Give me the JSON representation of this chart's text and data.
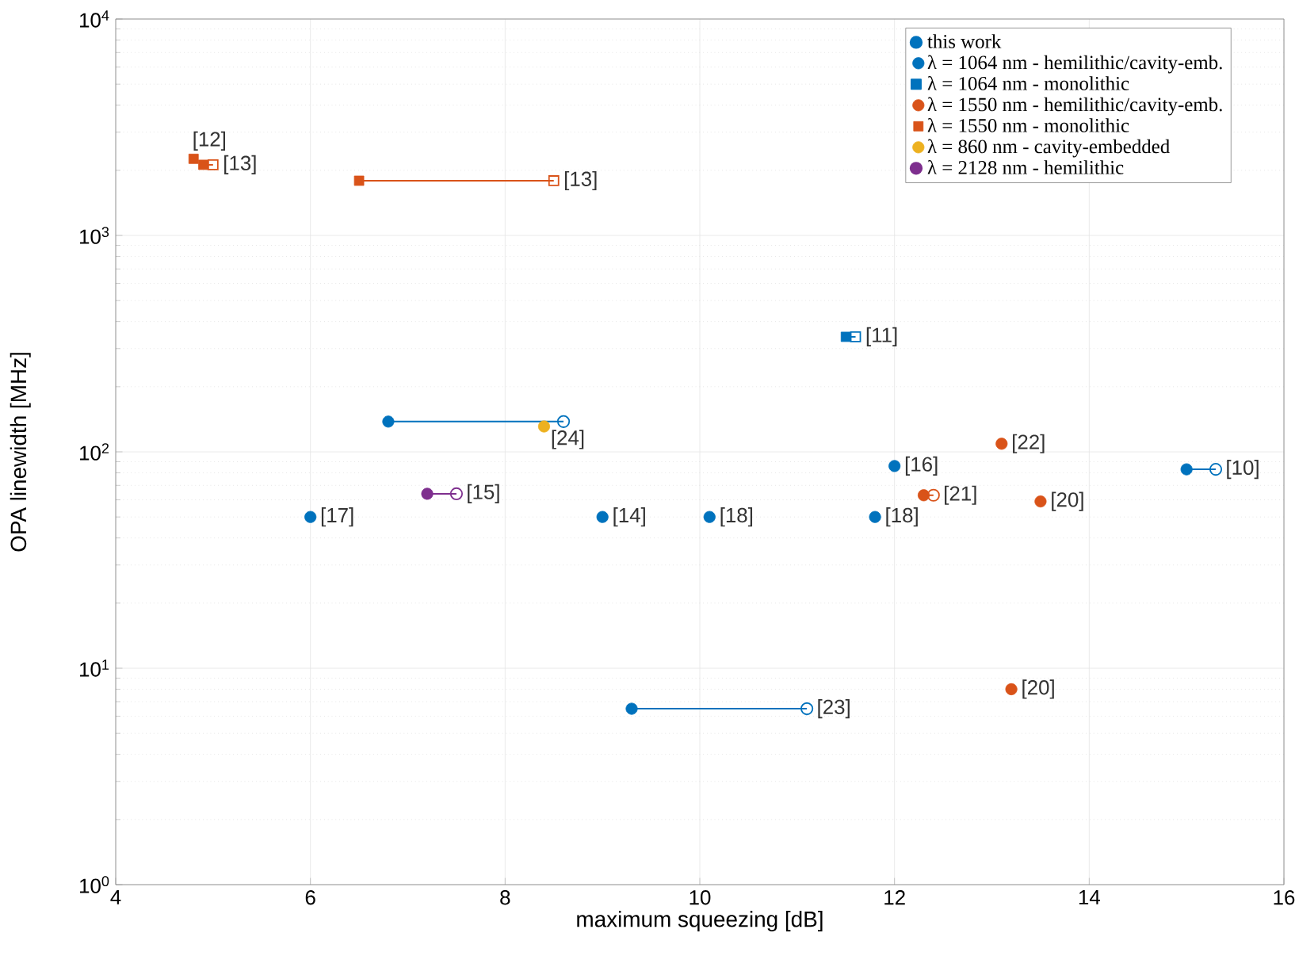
{
  "chart_data": {
    "type": "scatter",
    "xlabel": "maximum squeezing [dB]",
    "ylabel": "OPA linewidth [MHz]",
    "xlim": [
      4,
      16
    ],
    "xticks": [
      4,
      6,
      8,
      10,
      12,
      14,
      16
    ],
    "ylim": [
      1,
      10000
    ],
    "yticks": [
      {
        "value": 1,
        "label": "10$^{0}$"
      },
      {
        "value": 10,
        "label": "10$^{1}$"
      },
      {
        "value": 100,
        "label": "10$^{2}$"
      },
      {
        "value": 1000,
        "label": "10$^{3}$"
      },
      {
        "value": 10000,
        "label": "10$^{4}$"
      }
    ],
    "log": "y",
    "grid": true,
    "legend": "top right",
    "series": [
      {
        "name": "this work",
        "type": "line",
        "marker": "circle",
        "color": "#0072bd",
        "x": [
          6.8,
          8.6
        ],
        "values": [
          138,
          138
        ]
      },
      {
        "name": "λ = 1064 nm - hemilithic/cavity-emb.",
        "marker": "circle",
        "color": "#0072bd",
        "x": [
          6.0,
          9.0,
          10.1,
          11.8,
          12.0
        ],
        "values": [
          50,
          50,
          50,
          50,
          86
        ]
      },
      {
        "name": "λ = 1064 nm - monolithic",
        "type": "line",
        "marker": "square",
        "color": "#0072bd",
        "x": [
          11.5,
          11.6
        ],
        "values": [
          340,
          340
        ]
      },
      {
        "name": "λ = 1550 nm - hemilithic/cavity-emb.",
        "marker": "circle",
        "color": "#d95319",
        "x": [
          13.1,
          13.5,
          13.2
        ],
        "values": [
          109,
          59,
          8.0
        ]
      },
      {
        "name": "λ = 1550 nm - monolithic",
        "marker": "square",
        "color": "#d95319",
        "x": [
          4.8
        ],
        "values": [
          2260
        ]
      },
      {
        "name": "λ = 860 nm   - cavity-embedded",
        "marker": "circle",
        "color": "#edb120",
        "x": [
          8.4
        ],
        "values": [
          131
        ]
      },
      {
        "name": "λ = 2128 nm - hemilithic",
        "type": "line",
        "marker": "circle",
        "color": "#7e2f8e",
        "x": [
          7.2,
          7.5
        ],
        "values": [
          64,
          64
        ]
      },
      {
        "type": "line",
        "marker": "circle",
        "color": "#0072bd",
        "x": [
          15.0,
          15.3
        ],
        "values": [
          83,
          83
        ]
      },
      {
        "type": "line",
        "marker": "circle",
        "color": "#0072bd",
        "x": [
          9.3,
          11.1
        ],
        "values": [
          6.5,
          6.5
        ]
      },
      {
        "type": "line",
        "marker": "circle",
        "color": "#d95319",
        "x": [
          12.3,
          12.4
        ],
        "values": [
          63,
          63
        ]
      },
      {
        "type": "line",
        "marker": "square",
        "color": "#d95319",
        "x": [
          4.9,
          5.0
        ],
        "values": [
          2120,
          2120
        ]
      },
      {
        "type": "line",
        "marker": "square",
        "color": "#d95319",
        "x": [
          6.5,
          8.5
        ],
        "values": [
          1790,
          1790
        ]
      }
    ],
    "annotations": [
      {
        "text": "[12]",
        "x": 4.8,
        "y": 2260
      },
      {
        "text": "[13]",
        "x": 5.0,
        "y": 2120
      },
      {
        "text": "[13]",
        "x": 8.5,
        "y": 1790
      },
      {
        "text": "[11]",
        "x": 11.6,
        "y": 340
      },
      {
        "text": "[24]",
        "x": 8.4,
        "y": 131
      },
      {
        "text": "[22]",
        "x": 13.1,
        "y": 109
      },
      {
        "text": "[16]",
        "x": 12.0,
        "y": 86
      },
      {
        "text": "[10]",
        "x": 15.3,
        "y": 83
      },
      {
        "text": "[15]",
        "x": 7.5,
        "y": 64
      },
      {
        "text": "[21]",
        "x": 12.4,
        "y": 63
      },
      {
        "text": "[20]",
        "x": 13.5,
        "y": 59
      },
      {
        "text": "[17]",
        "x": 6.0,
        "y": 50
      },
      {
        "text": "[14]",
        "x": 9.0,
        "y": 50
      },
      {
        "text": "[18]",
        "x": 10.1,
        "y": 50
      },
      {
        "text": "[18]",
        "x": 11.8,
        "y": 50
      },
      {
        "text": "[20]",
        "x": 13.2,
        "y": 8.0
      },
      {
        "text": "[23]",
        "x": 11.1,
        "y": 6.5
      }
    ]
  }
}
